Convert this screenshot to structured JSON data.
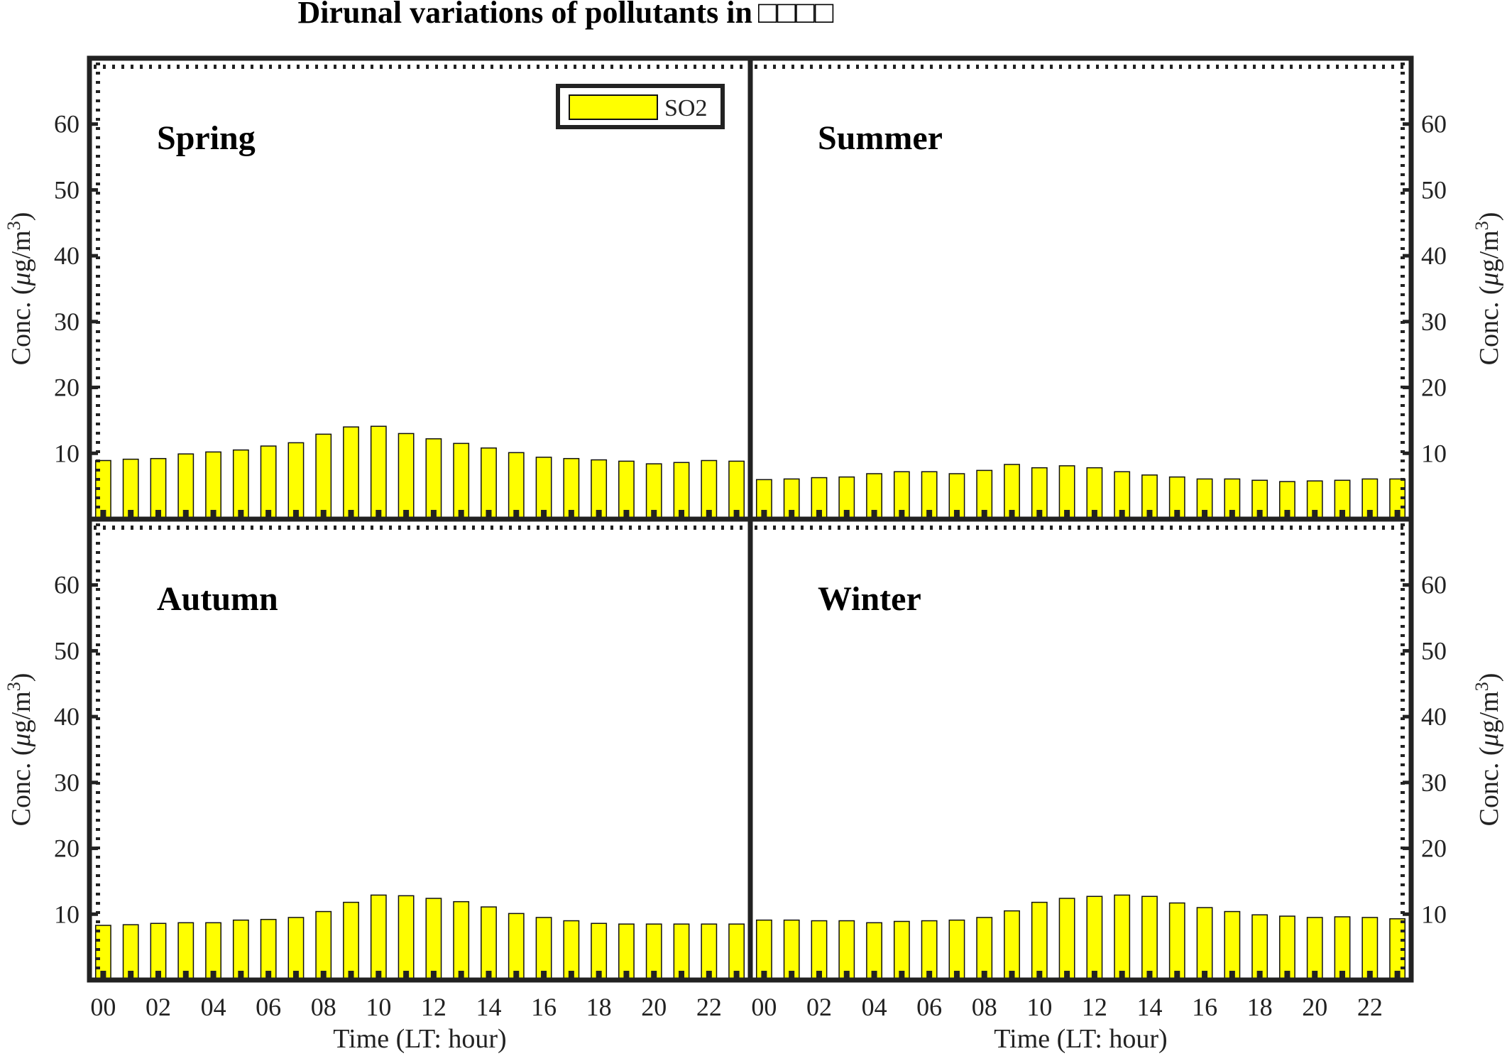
{
  "title": "Dirunal variations of pollutants in",
  "title_suffix": "□□□□",
  "legend": {
    "label": "SO2"
  },
  "colors": {
    "bar": "#ffff00",
    "frame": "#222222",
    "bar_edge": "#111111"
  },
  "chart_data": [
    {
      "type": "bar",
      "panel": "Spring",
      "series_name": "SO2",
      "categories": [
        "00",
        "01",
        "02",
        "03",
        "04",
        "05",
        "06",
        "07",
        "08",
        "09",
        "10",
        "11",
        "12",
        "13",
        "14",
        "15",
        "16",
        "17",
        "18",
        "19",
        "20",
        "21",
        "22",
        "23"
      ],
      "values": [
        8.9,
        9.1,
        9.2,
        9.9,
        10.2,
        10.5,
        11.1,
        11.6,
        12.9,
        14.0,
        14.1,
        13.0,
        12.2,
        11.5,
        10.8,
        10.1,
        9.4,
        9.2,
        9.0,
        8.8,
        8.4,
        8.6,
        8.9,
        8.8
      ],
      "ylabel": "Conc. (μg/m3)",
      "xlabel": "",
      "ylim": [
        0,
        70
      ],
      "yticks": [
        10,
        20,
        30,
        40,
        50,
        60
      ],
      "xtick_labels": [
        "00",
        "02",
        "04",
        "06",
        "08",
        "10",
        "12",
        "14",
        "16",
        "18",
        "20",
        "22"
      ],
      "legend": "top-right"
    },
    {
      "type": "bar",
      "panel": "Summer",
      "series_name": "SO2",
      "categories": [
        "00",
        "01",
        "02",
        "03",
        "04",
        "05",
        "06",
        "07",
        "08",
        "09",
        "10",
        "11",
        "12",
        "13",
        "14",
        "15",
        "16",
        "17",
        "18",
        "19",
        "20",
        "21",
        "22",
        "23"
      ],
      "values": [
        6.0,
        6.1,
        6.3,
        6.4,
        6.9,
        7.2,
        7.2,
        6.9,
        7.4,
        8.3,
        7.8,
        8.1,
        7.8,
        7.2,
        6.7,
        6.4,
        6.1,
        6.1,
        5.9,
        5.7,
        5.8,
        5.9,
        6.1,
        6.1
      ],
      "ylabel": "Conc. (μg/m3)",
      "xlabel": "",
      "ylim": [
        0,
        70
      ],
      "yticks": [
        10,
        20,
        30,
        40,
        50,
        60
      ],
      "xtick_labels": [
        "00",
        "02",
        "04",
        "06",
        "08",
        "10",
        "12",
        "14",
        "16",
        "18",
        "20",
        "22"
      ]
    },
    {
      "type": "bar",
      "panel": "Autumn",
      "series_name": "SO2",
      "categories": [
        "00",
        "01",
        "02",
        "03",
        "04",
        "05",
        "06",
        "07",
        "08",
        "09",
        "10",
        "11",
        "12",
        "13",
        "14",
        "15",
        "16",
        "17",
        "18",
        "19",
        "20",
        "21",
        "22",
        "23"
      ],
      "values": [
        8.3,
        8.4,
        8.6,
        8.7,
        8.7,
        9.1,
        9.2,
        9.5,
        10.4,
        11.8,
        12.9,
        12.8,
        12.4,
        11.9,
        11.1,
        10.1,
        9.5,
        9.0,
        8.6,
        8.5,
        8.5,
        8.5,
        8.5,
        8.5
      ],
      "ylabel": "Conc. (μg/m3)",
      "xlabel": "Time (LT: hour)",
      "ylim": [
        0,
        70
      ],
      "yticks": [
        10,
        20,
        30,
        40,
        50,
        60
      ],
      "xtick_labels": [
        "00",
        "02",
        "04",
        "06",
        "08",
        "10",
        "12",
        "14",
        "16",
        "18",
        "20",
        "22"
      ]
    },
    {
      "type": "bar",
      "panel": "Winter",
      "series_name": "SO2",
      "categories": [
        "00",
        "01",
        "02",
        "03",
        "04",
        "05",
        "06",
        "07",
        "08",
        "09",
        "10",
        "11",
        "12",
        "13",
        "14",
        "15",
        "16",
        "17",
        "18",
        "19",
        "20",
        "21",
        "22",
        "23"
      ],
      "values": [
        9.1,
        9.1,
        9.0,
        9.0,
        8.7,
        8.9,
        9.0,
        9.1,
        9.5,
        10.5,
        11.8,
        12.4,
        12.7,
        12.9,
        12.7,
        11.7,
        11.0,
        10.4,
        9.9,
        9.7,
        9.5,
        9.6,
        9.5,
        9.3
      ],
      "ylabel": "Conc. (μg/m3)",
      "xlabel": "Time (LT: hour)",
      "ylim": [
        0,
        70
      ],
      "yticks": [
        10,
        20,
        30,
        40,
        50,
        60
      ],
      "xtick_labels": [
        "00",
        "02",
        "04",
        "06",
        "08",
        "10",
        "12",
        "14",
        "16",
        "18",
        "20",
        "22"
      ]
    }
  ]
}
